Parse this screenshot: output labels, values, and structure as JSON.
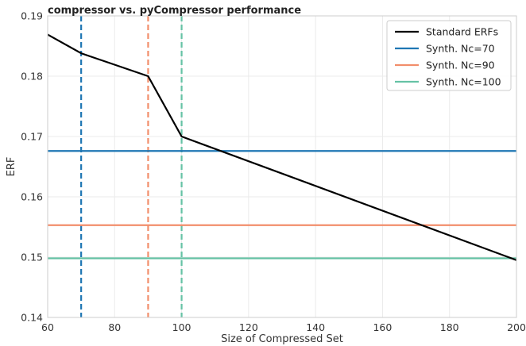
{
  "chart_data": {
    "type": "line",
    "title": "compressor vs. pyCompressor performance",
    "xlabel": "Size of Compressed Set",
    "ylabel": "ERF",
    "xlim": [
      60,
      200
    ],
    "ylim": [
      0.14,
      0.19
    ],
    "xticks": [
      60,
      80,
      100,
      120,
      140,
      160,
      180,
      200
    ],
    "yticks": [
      0.14,
      0.15,
      0.16,
      0.17,
      0.18,
      0.19
    ],
    "xtick_labels": [
      "60",
      "80",
      "100",
      "120",
      "140",
      "160",
      "180",
      "200"
    ],
    "ytick_labels": [
      "0.14",
      "0.15",
      "0.16",
      "0.17",
      "0.18",
      "0.19"
    ],
    "grid": true,
    "legend_position": "top-right",
    "series": [
      {
        "name": "Standard ERFs",
        "color": "#000000",
        "style": "line",
        "x": [
          60,
          70,
          90,
          100,
          200
        ],
        "y": [
          0.1869,
          0.1838,
          0.18,
          0.17,
          0.1495
        ]
      },
      {
        "name": "Synth. Nc=70",
        "color": "#1f77b4",
        "style": "hline",
        "y": 0.1676,
        "vline_x": 70
      },
      {
        "name": "Synth. Nc=90",
        "color": "#f28e6b",
        "style": "hline",
        "y": 0.1553,
        "vline_x": 90
      },
      {
        "name": "Synth. Nc=100",
        "color": "#66c2a5",
        "style": "hline",
        "y": 0.1498,
        "vline_x": 100
      }
    ]
  }
}
